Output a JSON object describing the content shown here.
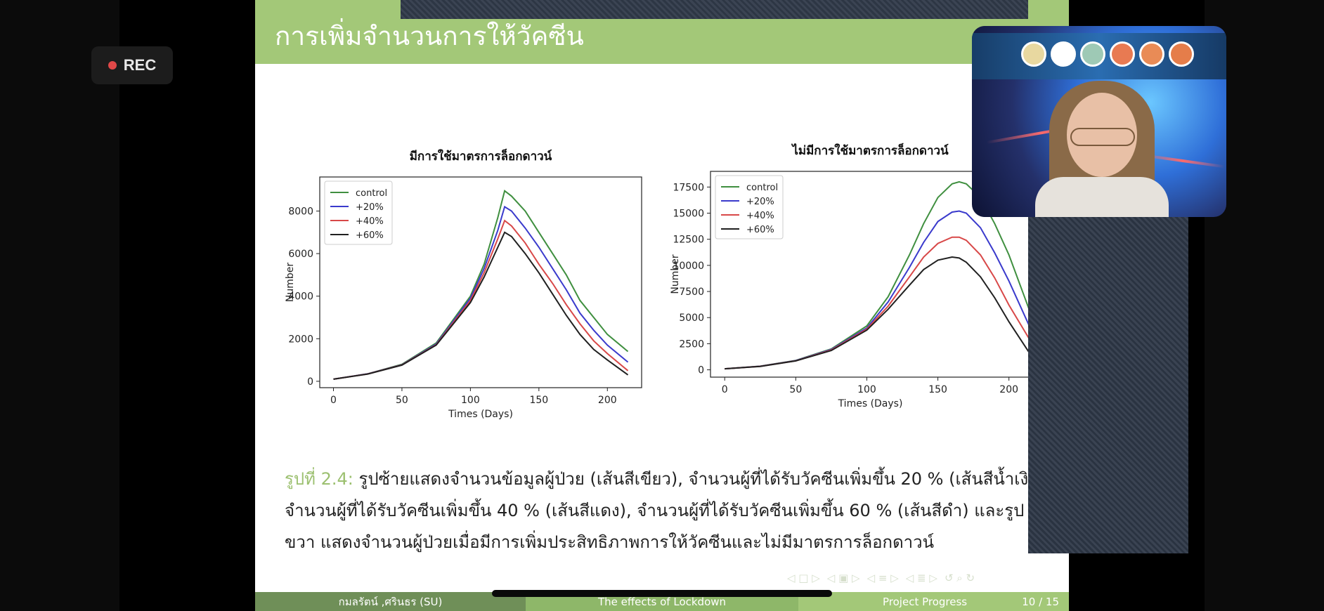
{
  "recorder": {
    "label": "REC"
  },
  "slide": {
    "title": "การเพิ่มจำนวนการให้วัคซีน",
    "caption_prefix": "รูปที่ 2.4:",
    "caption_line1": " รูปซ้ายแสดงจำนวนข้อมูลผู้ป่วย (เส้นสีเขียว), จำนวนผู้ที่ได้รับวัคซีนเพิ่มขึ้น 20 % (เส้นสีน้ำเงิน",
    "caption_line2": "จำนวนผู้ที่ได้รับวัคซีนเพิ่มขึ้น 40 % (เส้นสีแดง), จำนวนผู้ที่ได้รับวัคซีนเพิ่มขึ้น 60 % (เส้นสีดำ) และรูป",
    "caption_line3": "ขวา แสดงจำนวนผู้ป่วยเมื่อมีการเพิ่มประสิทธิภาพการให้วัคซีนและไม่มีมาตรการล็อกดาวน์",
    "footer": {
      "authors": "กมลรัตน์ ,ศรินธร (SU)",
      "topic": "The effects of Lockdown",
      "section": "Project Progress",
      "page": "10 / 15"
    }
  },
  "colors": {
    "accent": "#a3c878",
    "control": "#3f8f3f",
    "p20": "#3a3acc",
    "p40": "#d84848",
    "p60": "#202020"
  },
  "chart_data": [
    {
      "type": "line",
      "title": "มีการใช้มาตรการล็อกดาวน์",
      "xlabel": "Times (Days)",
      "ylabel": "Number",
      "xlim": [
        -10,
        225
      ],
      "ylim": [
        -300,
        9600
      ],
      "xticks": [
        0,
        50,
        100,
        150,
        200
      ],
      "yticks": [
        0,
        2000,
        4000,
        6000,
        8000
      ],
      "legend": "top-left",
      "x": [
        0,
        25,
        50,
        75,
        100,
        110,
        120,
        125,
        130,
        140,
        150,
        160,
        170,
        180,
        190,
        200,
        215
      ],
      "series": [
        {
          "name": "control",
          "color": "#3f8f3f",
          "values": [
            100,
            350,
            800,
            1800,
            4000,
            5500,
            7700,
            8950,
            8700,
            8000,
            7000,
            6000,
            5000,
            3800,
            3000,
            2200,
            1400
          ]
        },
        {
          "name": "+20%",
          "color": "#3a3acc",
          "values": [
            100,
            350,
            780,
            1750,
            3900,
            5300,
            7100,
            8200,
            8000,
            7200,
            6300,
            5300,
            4300,
            3200,
            2400,
            1700,
            900
          ]
        },
        {
          "name": "+40%",
          "color": "#d84848",
          "values": [
            100,
            345,
            770,
            1720,
            3800,
            5100,
            6700,
            7550,
            7300,
            6500,
            5500,
            4600,
            3600,
            2700,
            1900,
            1300,
            500
          ]
        },
        {
          "name": "+60%",
          "color": "#202020",
          "values": [
            100,
            340,
            760,
            1700,
            3700,
            4900,
            6300,
            7000,
            6800,
            6000,
            5100,
            4100,
            3100,
            2200,
            1500,
            1000,
            300
          ]
        }
      ]
    },
    {
      "type": "line",
      "title": "ไม่มีการใช้มาตรการล็อกดาวน์",
      "xlabel": "Times (Days)",
      "ylabel": "Number",
      "xlim": [
        -10,
        215
      ],
      "ylim": [
        -700,
        19000
      ],
      "xticks": [
        0,
        50,
        100,
        150,
        200
      ],
      "yticks": [
        0,
        2500,
        5000,
        7500,
        10000,
        12500,
        15000,
        17500
      ],
      "legend": "top-left",
      "x": [
        0,
        25,
        50,
        75,
        100,
        115,
        130,
        140,
        150,
        160,
        165,
        170,
        180,
        190,
        200,
        215
      ],
      "series": [
        {
          "name": "control",
          "color": "#3f8f3f",
          "values": [
            100,
            350,
            900,
            2000,
            4200,
            7000,
            11000,
            14000,
            16500,
            17800,
            18000,
            17800,
            16500,
            14000,
            11000,
            5500
          ]
        },
        {
          "name": "+20%",
          "color": "#3a3acc",
          "values": [
            100,
            340,
            880,
            1950,
            4000,
            6500,
            9800,
            12200,
            14200,
            15100,
            15200,
            15000,
            13600,
            11200,
            8500,
            4000
          ]
        },
        {
          "name": "+40%",
          "color": "#d84848",
          "values": [
            100,
            335,
            860,
            1900,
            3900,
            6100,
            8900,
            10800,
            12100,
            12700,
            12700,
            12400,
            11000,
            8800,
            6200,
            2800
          ]
        },
        {
          "name": "+60%",
          "color": "#202020",
          "values": [
            100,
            330,
            850,
            1850,
            3800,
            5800,
            8100,
            9600,
            10500,
            10800,
            10700,
            10300,
            8900,
            6900,
            4600,
            1500
          ]
        }
      ]
    }
  ]
}
